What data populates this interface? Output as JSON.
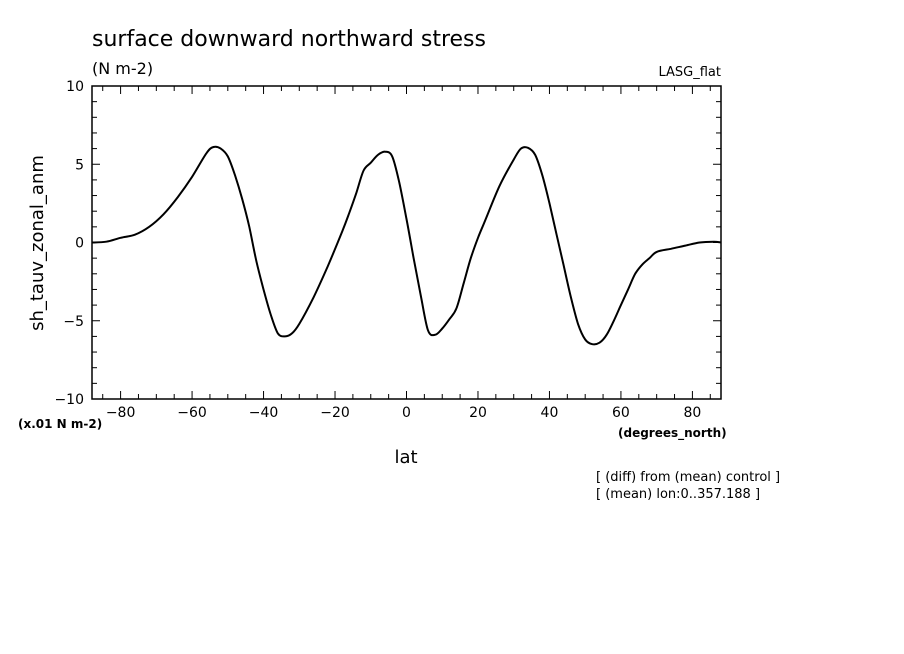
{
  "chart_data": {
    "type": "line",
    "title": "surface downward northward stress",
    "subtitle": "(N m-2)",
    "experiment_label": "LASG_flat",
    "xlabel": "lat",
    "xunit": "(degrees_north)",
    "ylabel": "sh_tauv_zonal_anm",
    "yunit": "(x.01 N m-2)",
    "xlim": [
      -88,
      88
    ],
    "ylim": [
      -10,
      10
    ],
    "x_ticks": [
      -80,
      -60,
      -40,
      -20,
      0,
      20,
      40,
      60,
      80
    ],
    "y_ticks": [
      -10,
      -5,
      0,
      5,
      10
    ],
    "grid": false,
    "notes": [
      "[ (diff) from (mean) control ]",
      "[ (mean) lon:0..357.188 ]"
    ],
    "series": [
      {
        "x": [
          -88,
          -84,
          -80,
          -76,
          -72,
          -68,
          -64,
          -60,
          -56,
          -54,
          -52,
          -50,
          -48,
          -46,
          -44,
          -42,
          -40,
          -38,
          -36,
          -34,
          -32,
          -30,
          -26,
          -22,
          -18,
          -16,
          -14,
          -12,
          -10,
          -8,
          -6,
          -4,
          -2,
          0,
          2,
          4,
          6,
          8,
          10,
          12,
          14,
          16,
          18,
          20,
          22,
          26,
          30,
          32,
          34,
          36,
          38,
          40,
          42,
          44,
          46,
          48,
          50,
          52,
          54,
          56,
          58,
          60,
          62,
          64,
          66,
          68,
          70,
          74,
          78,
          82,
          86,
          88
        ],
        "y": [
          0.0,
          0.05,
          0.3,
          0.5,
          1.0,
          1.8,
          2.9,
          4.2,
          5.7,
          6.1,
          6.0,
          5.5,
          4.3,
          2.8,
          1.0,
          -1.2,
          -3.0,
          -4.6,
          -5.8,
          -6.0,
          -5.8,
          -5.2,
          -3.5,
          -1.5,
          0.7,
          1.9,
          3.2,
          4.6,
          5.1,
          5.6,
          5.8,
          5.5,
          3.8,
          1.5,
          -1.0,
          -3.4,
          -5.6,
          -5.9,
          -5.5,
          -4.9,
          -4.2,
          -2.6,
          -1.0,
          0.3,
          1.4,
          3.6,
          5.3,
          6.0,
          6.05,
          5.6,
          4.3,
          2.5,
          0.5,
          -1.5,
          -3.5,
          -5.2,
          -6.2,
          -6.5,
          -6.4,
          -5.9,
          -5.0,
          -4.0,
          -3.0,
          -2.0,
          -1.4,
          -1.0,
          -0.6,
          -0.4,
          -0.2,
          0.0,
          0.05,
          0.0
        ]
      }
    ]
  }
}
